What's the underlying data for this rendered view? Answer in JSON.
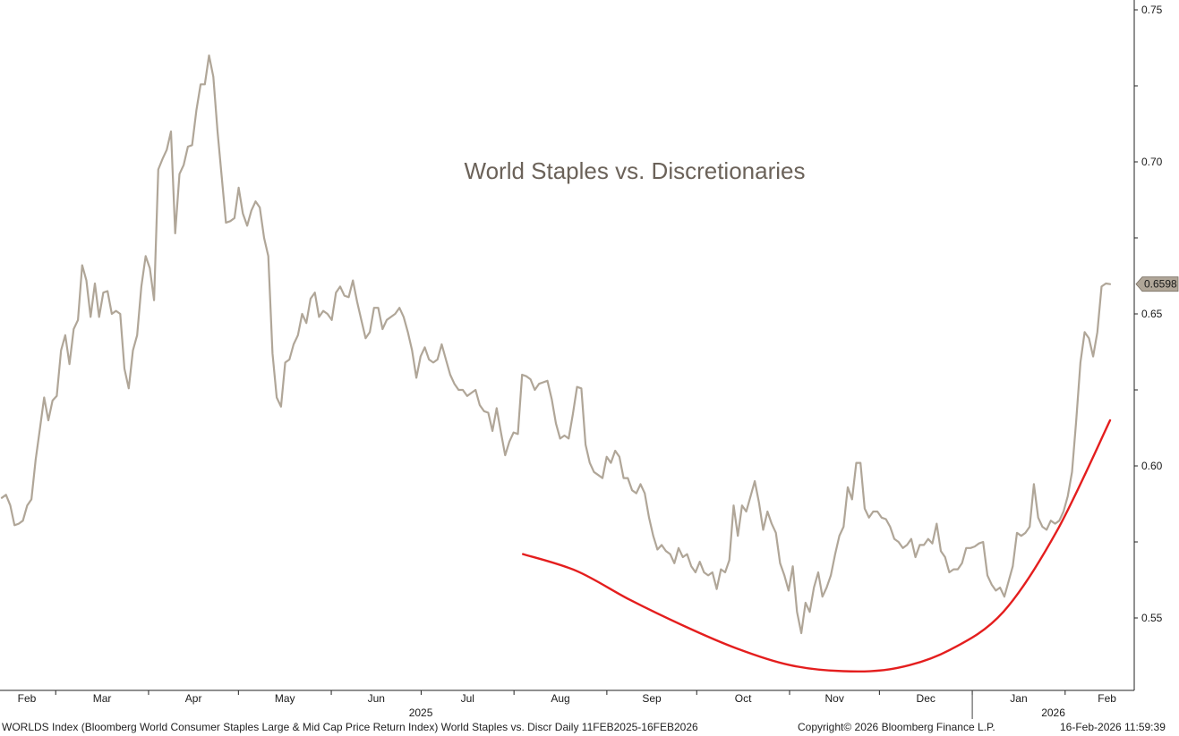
{
  "chart_data": {
    "type": "line",
    "title": "World Staples vs. Discretionaries",
    "xlabel": "",
    "ylabel": "",
    "ylim": [
      0.525,
      0.755
    ],
    "y_ticks": [
      "0.55",
      "0.60",
      "0.65",
      "0.70",
      "0.75"
    ],
    "x_ticks": [
      "Feb",
      "Mar",
      "Apr",
      "May",
      "Jun",
      "Jul",
      "Aug",
      "Sep",
      "Oct",
      "Nov",
      "Dec",
      "Jan",
      "Feb"
    ],
    "year_labels": [
      "2025",
      "2026"
    ],
    "last_value_label": "0.6598",
    "grid": false,
    "series": [
      {
        "color": "#b0a698",
        "x_start": "2025-02-11",
        "x_end": "2026-02-16",
        "values": [
          0.5895,
          0.5905,
          0.587,
          0.5805,
          0.581,
          0.582,
          0.587,
          0.589,
          0.602,
          0.612,
          0.6225,
          0.615,
          0.6215,
          0.623,
          0.638,
          0.643,
          0.6335,
          0.645,
          0.648,
          0.666,
          0.661,
          0.649,
          0.66,
          0.649,
          0.657,
          0.6575,
          0.65,
          0.651,
          0.65,
          0.632,
          0.6255,
          0.638,
          0.643,
          0.659,
          0.669,
          0.665,
          0.6545,
          0.6975,
          0.701,
          0.704,
          0.71,
          0.6765,
          0.696,
          0.699,
          0.705,
          0.7055,
          0.717,
          0.7255,
          0.7255,
          0.735,
          0.728,
          0.71,
          0.695,
          0.68,
          0.6805,
          0.6815,
          0.6915,
          0.683,
          0.679,
          0.684,
          0.687,
          0.685,
          0.675,
          0.669,
          0.637,
          0.6225,
          0.6195,
          0.634,
          0.635,
          0.64,
          0.643,
          0.65,
          0.647,
          0.655,
          0.657,
          0.649,
          0.651,
          0.65,
          0.648,
          0.657,
          0.659,
          0.656,
          0.6555,
          0.661,
          0.654,
          0.648,
          0.642,
          0.644,
          0.652,
          0.652,
          0.645,
          0.648,
          0.649,
          0.65,
          0.652,
          0.649,
          0.644,
          0.638,
          0.629,
          0.636,
          0.639,
          0.635,
          0.634,
          0.635,
          0.64,
          0.635,
          0.63,
          0.627,
          0.625,
          0.625,
          0.623,
          0.624,
          0.625,
          0.62,
          0.618,
          0.6175,
          0.6115,
          0.619,
          0.611,
          0.6035,
          0.608,
          0.611,
          0.6105,
          0.63,
          0.6295,
          0.6285,
          0.625,
          0.627,
          0.6275,
          0.628,
          0.622,
          0.614,
          0.609,
          0.61,
          0.609,
          0.617,
          0.626,
          0.6255,
          0.607,
          0.601,
          0.598,
          0.597,
          0.596,
          0.603,
          0.601,
          0.605,
          0.603,
          0.596,
          0.596,
          0.592,
          0.591,
          0.594,
          0.591,
          0.583,
          0.577,
          0.5725,
          0.574,
          0.572,
          0.571,
          0.568,
          0.573,
          0.57,
          0.571,
          0.567,
          0.565,
          0.5685,
          0.565,
          0.564,
          0.565,
          0.5595,
          0.566,
          0.565,
          0.569,
          0.587,
          0.577,
          0.587,
          0.585,
          0.59,
          0.595,
          0.588,
          0.579,
          0.585,
          0.581,
          0.578,
          0.568,
          0.564,
          0.559,
          0.567,
          0.552,
          0.545,
          0.555,
          0.552,
          0.56,
          0.565,
          0.557,
          0.56,
          0.564,
          0.571,
          0.577,
          0.58,
          0.593,
          0.589,
          0.601,
          0.601,
          0.586,
          0.583,
          0.585,
          0.585,
          0.583,
          0.5825,
          0.58,
          0.576,
          0.575,
          0.573,
          0.574,
          0.576,
          0.57,
          0.574,
          0.574,
          0.576,
          0.5745,
          0.581,
          0.572,
          0.57,
          0.565,
          0.566,
          0.566,
          0.568,
          0.573,
          0.573,
          0.5735,
          0.5745,
          0.575,
          0.564,
          0.561,
          0.559,
          0.56,
          0.557,
          0.562,
          0.567,
          0.578,
          0.577,
          0.578,
          0.58,
          0.594,
          0.583,
          0.58,
          0.579,
          0.582,
          0.581,
          0.582,
          0.585,
          0.59,
          0.598,
          0.615,
          0.634,
          0.644,
          0.642,
          0.636,
          0.644,
          0.659,
          0.66,
          0.6598
        ]
      },
      {
        "color": "#e41e1e",
        "x_start": "2025-08-04",
        "x_end": "2026-02-16",
        "values": [
          0.571,
          0.5655,
          0.556,
          0.5475,
          0.54,
          0.5345,
          0.5325,
          0.5335,
          0.5395,
          0.552,
          0.5785,
          0.615
        ]
      }
    ]
  },
  "footer": {
    "left": "WORLDS Index (Bloomberg World Consumer Staples Large & Mid Cap Price Return Index) World Staples vs. Discr Daily 11FEB2025-16FEB2026",
    "copyright": "Copyright© 2026 Bloomberg Finance L.P.",
    "timestamp": "16-Feb-2026 11:59:39"
  }
}
